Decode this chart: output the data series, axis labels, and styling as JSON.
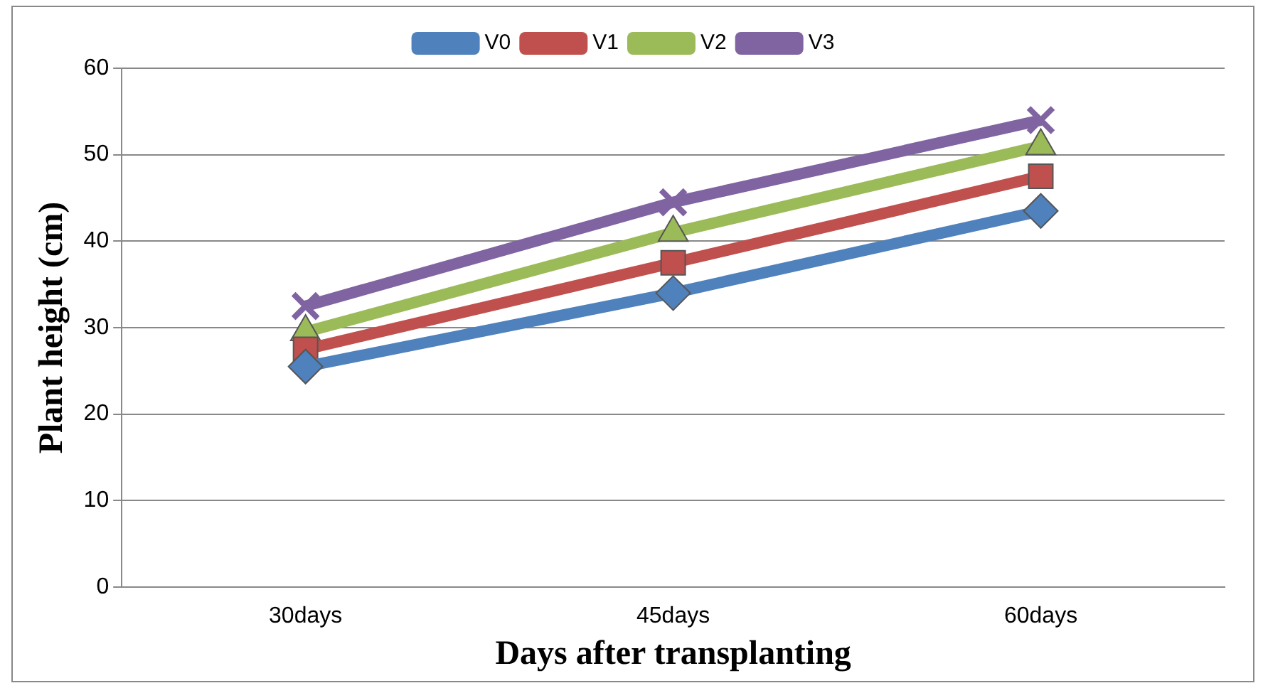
{
  "chart_data": {
    "type": "line",
    "xlabel": "Days after transplanting",
    "ylabel": "Plant height (cm)",
    "categories": [
      "30days",
      "45days",
      "60days"
    ],
    "series": [
      {
        "name": "V0",
        "color": "#4f81bd",
        "marker": "diamond",
        "values": [
          25.5,
          34,
          43.5
        ]
      },
      {
        "name": "V1",
        "color": "#c0504d",
        "marker": "square",
        "values": [
          27.5,
          37.5,
          47.5
        ]
      },
      {
        "name": "V2",
        "color": "#9bbb59",
        "marker": "triangle",
        "values": [
          29.5,
          41,
          51
        ]
      },
      {
        "name": "V3",
        "color": "#8064a2",
        "marker": "cross",
        "values": [
          32.5,
          44.5,
          54
        ]
      }
    ],
    "ylim": [
      0,
      60
    ],
    "yticks": [
      0,
      10,
      20,
      30,
      40,
      50,
      60
    ],
    "grid": "y",
    "legend": "top"
  }
}
